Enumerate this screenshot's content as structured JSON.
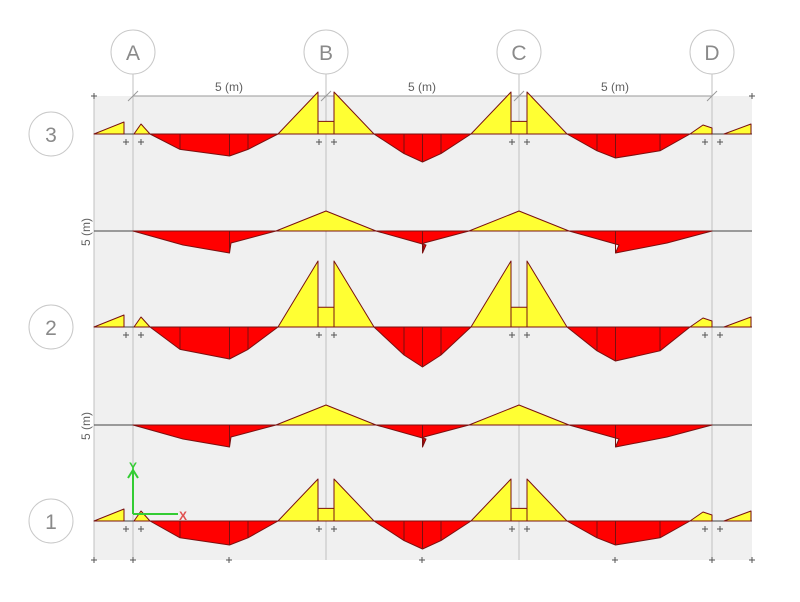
{
  "grid_bubbles": {
    "columns": [
      {
        "label": "A"
      },
      {
        "label": "B"
      },
      {
        "label": "C"
      },
      {
        "label": "D"
      }
    ],
    "rows": [
      {
        "label": "3"
      },
      {
        "label": "2"
      },
      {
        "label": "1"
      }
    ]
  },
  "dimensions": {
    "horizontal": [
      "5 (m)",
      "5 (m)",
      "5 (m)"
    ],
    "vertical": [
      "5 (m)",
      "5 (m)"
    ]
  },
  "axes": {
    "y_label": "Y",
    "x_label": "X",
    "y_color": "#33cc33",
    "x_color": "#e05050"
  },
  "colors": {
    "background": "#f0f0f0",
    "positive_moment": "#ffff33",
    "negative_moment": "#ff0000",
    "outline": "#7a1010",
    "bubble_stroke": "#c8c8c8",
    "grid_line": "#c0c0c0"
  }
}
